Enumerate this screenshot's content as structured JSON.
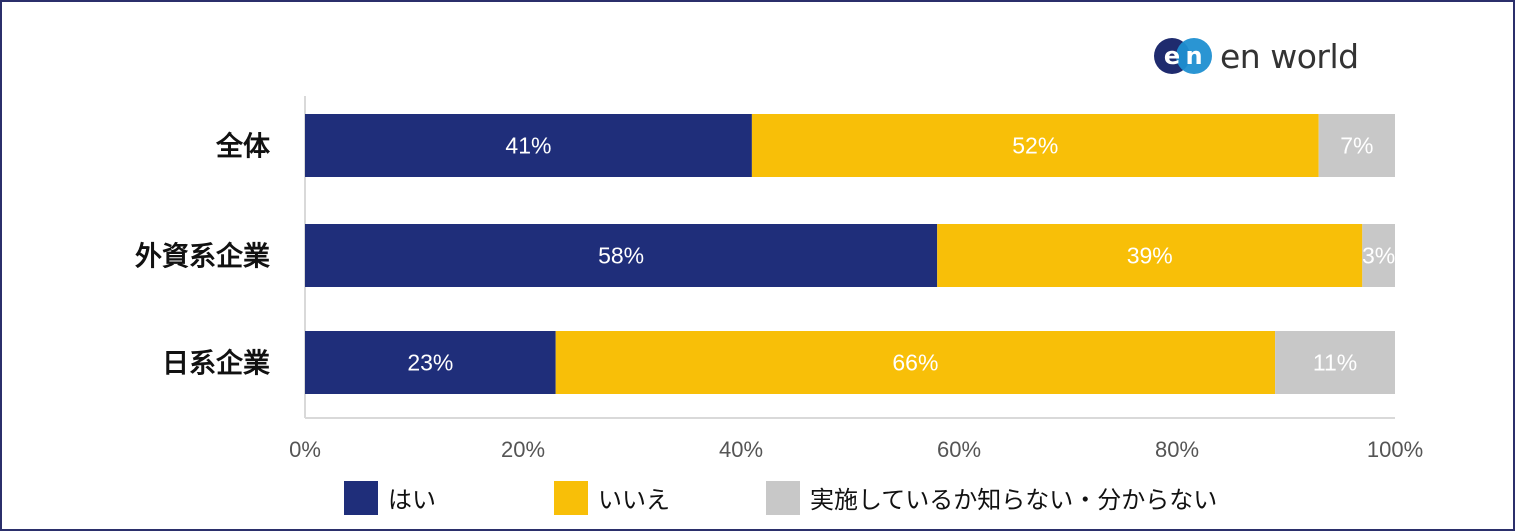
{
  "brand": {
    "logo_name": "en-world-logo",
    "mark_letters": [
      "e",
      "n"
    ],
    "wordmark": "en world",
    "mark_colors": [
      "#1f2b6e",
      "#1f8fd1"
    ]
  },
  "chart_data": {
    "type": "bar",
    "orientation": "horizontal",
    "stacked": true,
    "categories": [
      "全体",
      "外資系企業",
      "日系企業"
    ],
    "series": [
      {
        "name": "はい",
        "color": "#1f2e7a",
        "label_color": "#ffffff",
        "values": [
          41,
          58,
          23
        ],
        "labels": [
          "41%",
          "58%",
          "23%"
        ]
      },
      {
        "name": "いいえ",
        "color": "#f8bf08",
        "label_color": "#ffffff",
        "values": [
          52,
          39,
          66
        ],
        "labels": [
          "52%",
          "39%",
          "66%"
        ]
      },
      {
        "name": "実施しているか知らない・分からない",
        "color": "#c8c8c8",
        "label_color": "#ffffff",
        "values": [
          7,
          3,
          11
        ],
        "labels": [
          "7%",
          "3%",
          "11%"
        ]
      }
    ],
    "xlim": [
      0,
      100
    ],
    "x_ticks": [
      "0%",
      "20%",
      "40%",
      "60%",
      "80%",
      "100%"
    ],
    "title": "",
    "xlabel": "",
    "ylabel": "",
    "grid": false,
    "legend_position": "bottom"
  }
}
